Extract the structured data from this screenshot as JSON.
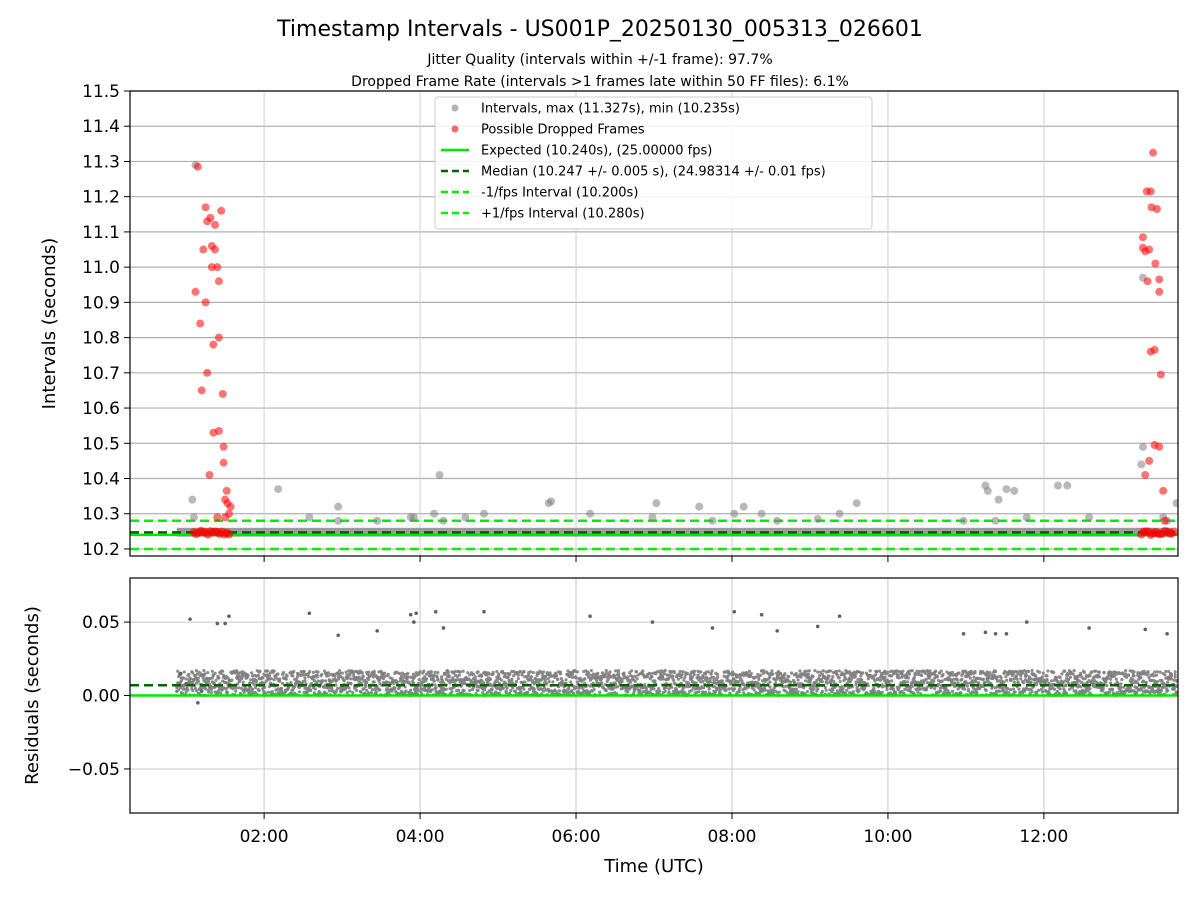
{
  "figure": {
    "title": "Timestamp Intervals - US001P_20250130_005313_026601",
    "subtitle_1": "Jitter Quality (intervals within +/-1 frame): 97.7%",
    "subtitle_2": "Dropped Frame Rate (intervals >1 frames late within 50 FF files): 6.1%",
    "xlabel": "Time (UTC)"
  },
  "colors": {
    "gray_points": "#808080",
    "red_points": "#ff0000",
    "expected_line": "#00e600",
    "median_line": "#006400",
    "fps_interval": "#00ee00",
    "grid": "#b0b0b0"
  },
  "chart_data": [
    {
      "type": "scatter",
      "panel": "top",
      "ylabel": "Intervals (seconds)",
      "xlim_hours": [
        0.28,
        13.72
      ],
      "ylim": [
        10.18,
        11.5
      ],
      "yticks": [
        10.2,
        10.3,
        10.4,
        10.5,
        10.6,
        10.7,
        10.8,
        10.9,
        11.0,
        11.1,
        11.2,
        11.3,
        11.4,
        11.5
      ],
      "ytick_labels": [
        "10.2",
        "10.3",
        "10.4",
        "10.5",
        "10.6",
        "10.7",
        "10.8",
        "10.9",
        "11.0",
        "11.1",
        "11.2",
        "11.3",
        "11.4",
        "11.5"
      ],
      "grid": true,
      "legend_position": "top-center",
      "legend": [
        "Intervals, max (11.327s), min (10.235s)",
        "Possible Dropped Frames",
        "Expected (10.240s), (25.00000 fps)",
        "Median (10.247 +/- 0.005 s), (24.98314 +/- 0.01 fps)",
        "-1/fps Interval (10.200s)",
        "+1/fps Interval (10.280s)"
      ],
      "reference_lines": {
        "expected": 10.24,
        "median": 10.247,
        "minus_one_fps": 10.2,
        "plus_one_fps": 10.28
      },
      "baseline_band": {
        "x_range_hours": [
          0.88,
          13.65
        ],
        "y_range": [
          10.235,
          10.26
        ]
      },
      "interval_points": [
        [
          1.08,
          10.34
        ],
        [
          1.1,
          10.29
        ],
        [
          1.12,
          11.29
        ],
        [
          2.18,
          10.37
        ],
        [
          2.58,
          10.29
        ],
        [
          2.95,
          10.32
        ],
        [
          2.95,
          10.28
        ],
        [
          3.45,
          10.28
        ],
        [
          3.88,
          10.29
        ],
        [
          3.92,
          10.29
        ],
        [
          4.18,
          10.3
        ],
        [
          4.25,
          10.41
        ],
        [
          4.3,
          10.28
        ],
        [
          4.58,
          10.29
        ],
        [
          4.82,
          10.3
        ],
        [
          5.65,
          10.33
        ],
        [
          5.68,
          10.335
        ],
        [
          6.18,
          10.3
        ],
        [
          6.98,
          10.29
        ],
        [
          7.03,
          10.33
        ],
        [
          7.58,
          10.32
        ],
        [
          7.75,
          10.28
        ],
        [
          8.03,
          10.3
        ],
        [
          8.15,
          10.32
        ],
        [
          8.38,
          10.3
        ],
        [
          8.58,
          10.28
        ],
        [
          9.1,
          10.285
        ],
        [
          9.38,
          10.3
        ],
        [
          9.6,
          10.33
        ],
        [
          10.97,
          10.28
        ],
        [
          11.25,
          10.38
        ],
        [
          11.28,
          10.365
        ],
        [
          11.38,
          10.28
        ],
        [
          11.42,
          10.34
        ],
        [
          11.52,
          10.37
        ],
        [
          11.62,
          10.365
        ],
        [
          11.78,
          10.29
        ],
        [
          12.18,
          10.38
        ],
        [
          12.3,
          10.38
        ],
        [
          12.58,
          10.29
        ],
        [
          13.25,
          10.44
        ],
        [
          13.27,
          10.49
        ],
        [
          13.27,
          10.97
        ],
        [
          13.53,
          10.29
        ],
        [
          13.58,
          10.28
        ],
        [
          13.7,
          10.33
        ]
      ],
      "dropped_frame_points": [
        [
          1.15,
          11.285
        ],
        [
          1.25,
          11.17
        ],
        [
          1.27,
          11.13
        ],
        [
          1.31,
          11.14
        ],
        [
          1.45,
          11.16
        ],
        [
          1.37,
          11.12
        ],
        [
          1.22,
          11.05
        ],
        [
          1.33,
          11.06
        ],
        [
          1.37,
          11.05
        ],
        [
          1.33,
          11.0
        ],
        [
          1.4,
          11.0
        ],
        [
          1.42,
          10.96
        ],
        [
          1.12,
          10.93
        ],
        [
          1.25,
          10.9
        ],
        [
          1.18,
          10.84
        ],
        [
          1.42,
          10.8
        ],
        [
          1.35,
          10.78
        ],
        [
          1.27,
          10.7
        ],
        [
          1.2,
          10.65
        ],
        [
          1.47,
          10.64
        ],
        [
          1.35,
          10.53
        ],
        [
          1.42,
          10.535
        ],
        [
          1.48,
          10.49
        ],
        [
          1.48,
          10.445
        ],
        [
          1.3,
          10.41
        ],
        [
          1.52,
          10.365
        ],
        [
          1.5,
          10.34
        ],
        [
          1.53,
          10.33
        ],
        [
          1.57,
          10.32
        ],
        [
          1.55,
          10.3
        ],
        [
          1.4,
          10.29
        ],
        [
          1.5,
          10.29
        ],
        [
          13.4,
          11.325
        ],
        [
          13.32,
          11.215
        ],
        [
          13.37,
          11.215
        ],
        [
          13.38,
          11.17
        ],
        [
          13.45,
          11.165
        ],
        [
          13.27,
          11.085
        ],
        [
          13.27,
          11.055
        ],
        [
          13.3,
          11.045
        ],
        [
          13.35,
          11.05
        ],
        [
          13.43,
          11.01
        ],
        [
          13.33,
          10.96
        ],
        [
          13.48,
          10.965
        ],
        [
          13.48,
          10.93
        ],
        [
          13.37,
          10.76
        ],
        [
          13.42,
          10.765
        ],
        [
          13.5,
          10.695
        ],
        [
          13.42,
          10.495
        ],
        [
          13.48,
          10.49
        ],
        [
          13.35,
          10.45
        ],
        [
          13.3,
          10.41
        ],
        [
          13.53,
          10.365
        ],
        [
          13.55,
          10.28
        ]
      ],
      "dropped_frame_cluster_hours": [
        [
          1.1,
          1.58
        ],
        [
          13.25,
          13.68
        ]
      ]
    },
    {
      "type": "scatter",
      "panel": "bottom",
      "ylabel": "Residuals (seconds)",
      "xlabel": "Time (UTC)",
      "xlim_hours": [
        0.28,
        13.72
      ],
      "ylim": [
        -0.08,
        0.08
      ],
      "yticks": [
        -0.05,
        0.0,
        0.05
      ],
      "ytick_labels": [
        "−0.05",
        "0.00",
        "0.05"
      ],
      "xticks_hours": [
        2,
        4,
        6,
        8,
        10,
        12
      ],
      "xtick_labels": [
        "02:00",
        "04:00",
        "06:00",
        "08:00",
        "10:00",
        "12:00"
      ],
      "grid": true,
      "reference_lines": {
        "expected": 0.0,
        "median": 0.007
      },
      "residual_band": {
        "x_range_hours": [
          0.88,
          13.72
        ],
        "y_range": [
          0.0,
          0.017
        ]
      },
      "residual_points": [
        [
          1.05,
          0.052
        ],
        [
          0.93,
          0.015
        ],
        [
          1.0,
          0.008
        ],
        [
          1.15,
          -0.005
        ],
        [
          1.2,
          0.003
        ],
        [
          1.4,
          0.049
        ],
        [
          1.5,
          0.049
        ],
        [
          1.55,
          0.054
        ],
        [
          2.58,
          0.056
        ],
        [
          2.95,
          0.041
        ],
        [
          3.45,
          0.044
        ],
        [
          3.88,
          0.055
        ],
        [
          3.92,
          0.05
        ],
        [
          3.95,
          0.056
        ],
        [
          4.2,
          0.057
        ],
        [
          4.3,
          0.046
        ],
        [
          4.82,
          0.057
        ],
        [
          6.18,
          0.054
        ],
        [
          6.98,
          0.05
        ],
        [
          7.75,
          0.046
        ],
        [
          8.03,
          0.057
        ],
        [
          8.38,
          0.055
        ],
        [
          8.58,
          0.044
        ],
        [
          9.1,
          0.047
        ],
        [
          9.38,
          0.054
        ],
        [
          10.97,
          0.042
        ],
        [
          11.25,
          0.043
        ],
        [
          11.38,
          0.042
        ],
        [
          11.52,
          0.042
        ],
        [
          11.78,
          0.05
        ],
        [
          12.58,
          0.046
        ],
        [
          13.3,
          0.045
        ],
        [
          13.58,
          0.042
        ]
      ]
    }
  ]
}
